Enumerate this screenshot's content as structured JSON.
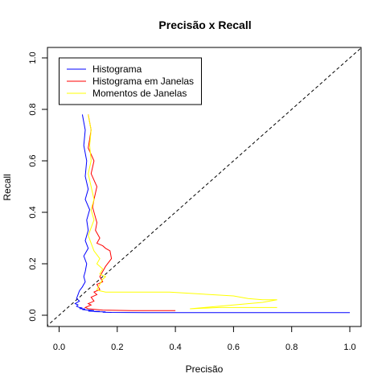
{
  "chart_data": {
    "type": "line",
    "title": "Precisão x Recall",
    "xlabel": "Precisão",
    "ylabel": "Recall",
    "xlim": [
      0,
      1
    ],
    "ylim": [
      0,
      1
    ],
    "xticks": [
      "0.0",
      "0.2",
      "0.4",
      "0.6",
      "0.8",
      "1.0"
    ],
    "yticks": [
      "0.0",
      "0.2",
      "0.4",
      "0.6",
      "0.8",
      "1.0"
    ],
    "grid": false,
    "legend_position": "top-left",
    "reference_line": {
      "style": "dashed",
      "color": "#000000",
      "from": [
        0,
        0
      ],
      "to": [
        1,
        1
      ]
    },
    "series": [
      {
        "name": "Histograma",
        "color": "#0000ff",
        "x": [
          0.08,
          0.09,
          0.085,
          0.095,
          0.09,
          0.1,
          0.09,
          0.105,
          0.095,
          0.1,
          0.09,
          0.1,
          0.085,
          0.095,
          0.09,
          0.085,
          0.09,
          0.08,
          0.07,
          0.065,
          0.06,
          0.07,
          0.055,
          0.065,
          0.06,
          0.07,
          0.08,
          0.07,
          0.09,
          0.08,
          0.1,
          0.12,
          0.1,
          0.14,
          0.12,
          0.16,
          0.15,
          0.18,
          0.17,
          0.3,
          0.5,
          0.8,
          1.0
        ],
        "y": [
          0.78,
          0.72,
          0.66,
          0.6,
          0.54,
          0.49,
          0.45,
          0.41,
          0.37,
          0.33,
          0.29,
          0.26,
          0.23,
          0.2,
          0.17,
          0.15,
          0.13,
          0.11,
          0.095,
          0.08,
          0.065,
          0.055,
          0.045,
          0.04,
          0.035,
          0.03,
          0.028,
          0.026,
          0.024,
          0.022,
          0.02,
          0.018,
          0.016,
          0.015,
          0.014,
          0.013,
          0.012,
          0.011,
          0.011,
          0.01,
          0.01,
          0.01,
          0.01
        ]
      },
      {
        "name": "Histograma em Janelas",
        "color": "#ff0000",
        "x": [
          0.1,
          0.11,
          0.1,
          0.12,
          0.11,
          0.13,
          0.12,
          0.115,
          0.12,
          0.13,
          0.125,
          0.14,
          0.13,
          0.15,
          0.16,
          0.175,
          0.18,
          0.16,
          0.15,
          0.14,
          0.15,
          0.13,
          0.14,
          0.12,
          0.13,
          0.11,
          0.12,
          0.1,
          0.11,
          0.09,
          0.1,
          0.15,
          0.25,
          0.4
        ],
        "y": [
          0.78,
          0.72,
          0.65,
          0.6,
          0.55,
          0.5,
          0.45,
          0.42,
          0.4,
          0.36,
          0.33,
          0.3,
          0.28,
          0.27,
          0.26,
          0.25,
          0.22,
          0.19,
          0.17,
          0.15,
          0.13,
          0.12,
          0.1,
          0.09,
          0.08,
          0.07,
          0.055,
          0.045,
          0.04,
          0.03,
          0.025,
          0.02,
          0.018,
          0.018
        ]
      },
      {
        "name": "Momentos de Janelas",
        "color": "#ffff00",
        "x": [
          0.1,
          0.11,
          0.105,
          0.11,
          0.1,
          0.11,
          0.12,
          0.11,
          0.12,
          0.11,
          0.1,
          0.11,
          0.12,
          0.14,
          0.13,
          0.15,
          0.14,
          0.16,
          0.15,
          0.14,
          0.13,
          0.14,
          0.16,
          0.2,
          0.3,
          0.38,
          0.45,
          0.6,
          0.65,
          0.7,
          0.75,
          0.7,
          0.6,
          0.5,
          0.45,
          0.55,
          0.75
        ],
        "y": [
          0.78,
          0.72,
          0.66,
          0.6,
          0.55,
          0.5,
          0.45,
          0.41,
          0.37,
          0.34,
          0.31,
          0.28,
          0.25,
          0.22,
          0.2,
          0.18,
          0.16,
          0.15,
          0.14,
          0.12,
          0.1,
          0.095,
          0.09,
          0.09,
          0.09,
          0.09,
          0.085,
          0.075,
          0.065,
          0.06,
          0.06,
          0.05,
          0.04,
          0.03,
          0.025,
          0.03,
          0.03
        ]
      }
    ]
  }
}
